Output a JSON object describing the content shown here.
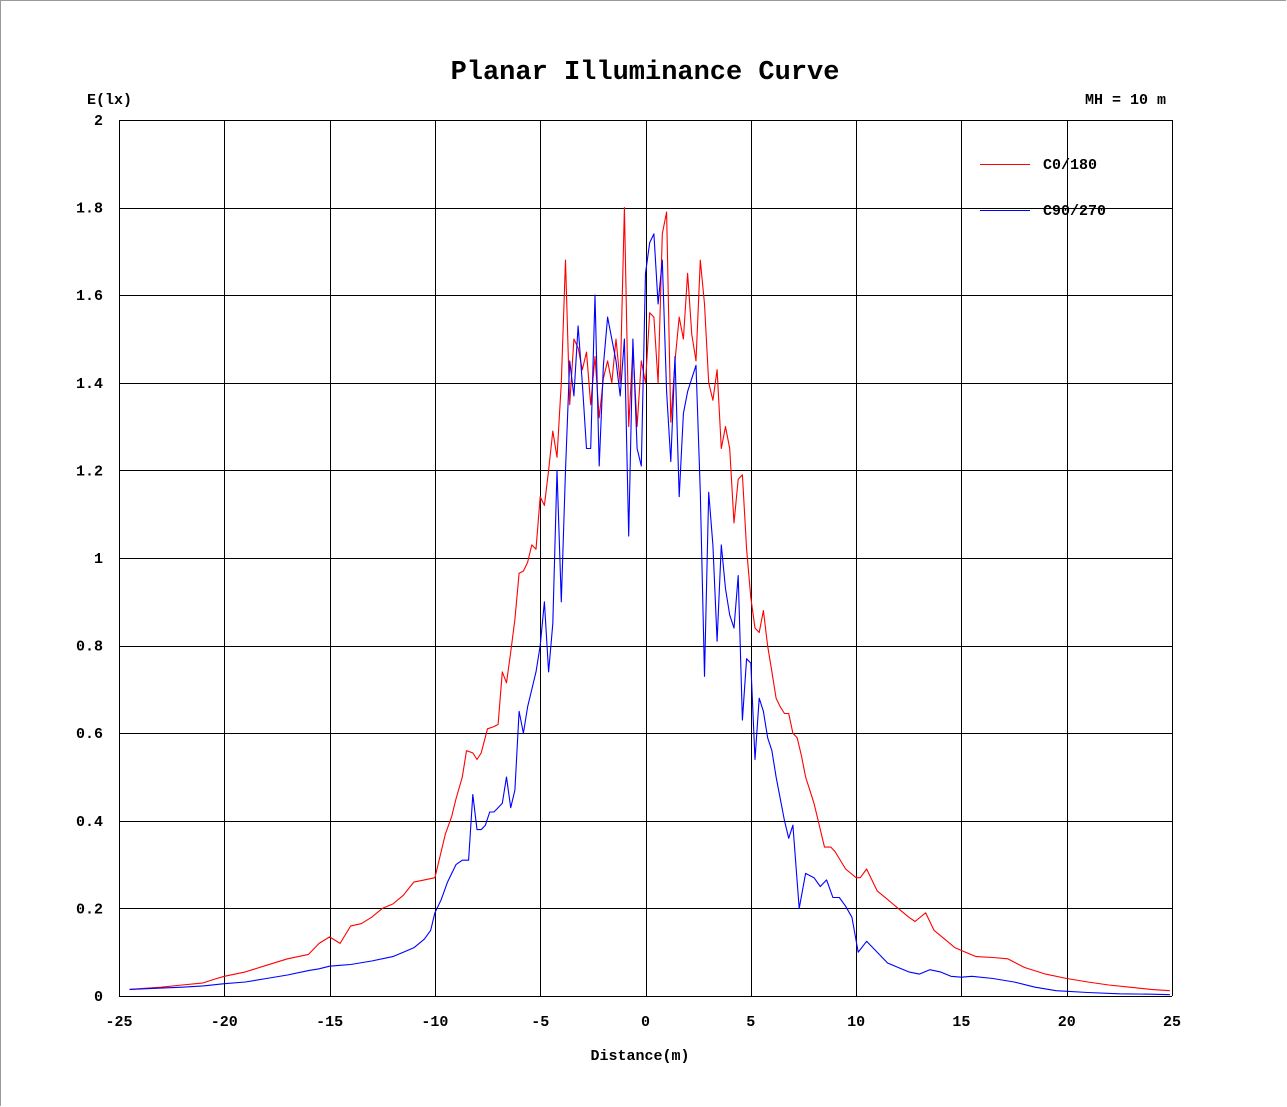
{
  "chart_data": {
    "type": "line",
    "title": "Planar Illuminance Curve",
    "ylabel": "E(lx)",
    "xlabel": "Distance(m)",
    "annotation": "MH = 10 m",
    "xlim": [
      -25,
      25
    ],
    "ylim": [
      0,
      2
    ],
    "xticks": [
      -25,
      -20,
      -15,
      -10,
      -5,
      0,
      5,
      10,
      15,
      20,
      25
    ],
    "yticks": [
      0,
      0.2,
      0.4,
      0.6,
      0.8,
      1,
      1.2,
      1.4,
      1.6,
      1.8,
      2
    ],
    "grid": true,
    "legend_position": "top-right",
    "colors": {
      "C0/180": "#ff0000",
      "C90/270": "#0000ff",
      "grid": "#000000"
    },
    "series": [
      {
        "name": "C0/180",
        "color": "#ff0000",
        "points": [
          [
            -24.5,
            0.015
          ],
          [
            -23,
            0.02
          ],
          [
            -22,
            0.025
          ],
          [
            -21,
            0.03
          ],
          [
            -20.5,
            0.038
          ],
          [
            -20,
            0.045
          ],
          [
            -19,
            0.055
          ],
          [
            -18,
            0.07
          ],
          [
            -17,
            0.085
          ],
          [
            -16,
            0.095
          ],
          [
            -15.5,
            0.12
          ],
          [
            -15,
            0.135
          ],
          [
            -14.5,
            0.12
          ],
          [
            -14,
            0.16
          ],
          [
            -13.5,
            0.165
          ],
          [
            -13,
            0.18
          ],
          [
            -12.5,
            0.2
          ],
          [
            -12,
            0.21
          ],
          [
            -11.5,
            0.23
          ],
          [
            -11,
            0.26
          ],
          [
            -10.5,
            0.265
          ],
          [
            -10,
            0.27
          ],
          [
            -9.8,
            0.31
          ],
          [
            -9.5,
            0.37
          ],
          [
            -9.2,
            0.41
          ],
          [
            -9,
            0.45
          ],
          [
            -8.7,
            0.5
          ],
          [
            -8.5,
            0.56
          ],
          [
            -8.2,
            0.555
          ],
          [
            -8,
            0.54
          ],
          [
            -7.8,
            0.555
          ],
          [
            -7.5,
            0.61
          ],
          [
            -7.2,
            0.615
          ],
          [
            -7,
            0.62
          ],
          [
            -6.8,
            0.74
          ],
          [
            -6.6,
            0.715
          ],
          [
            -6.4,
            0.785
          ],
          [
            -6.2,
            0.86
          ],
          [
            -6,
            0.965
          ],
          [
            -5.8,
            0.97
          ],
          [
            -5.6,
            0.99
          ],
          [
            -5.4,
            1.03
          ],
          [
            -5.2,
            1.02
          ],
          [
            -5,
            1.14
          ],
          [
            -4.8,
            1.12
          ],
          [
            -4.6,
            1.2
          ],
          [
            -4.4,
            1.29
          ],
          [
            -4.2,
            1.23
          ],
          [
            -4,
            1.4
          ],
          [
            -3.8,
            1.68
          ],
          [
            -3.6,
            1.35
          ],
          [
            -3.4,
            1.5
          ],
          [
            -3.2,
            1.48
          ],
          [
            -3,
            1.43
          ],
          [
            -2.8,
            1.47
          ],
          [
            -2.6,
            1.35
          ],
          [
            -2.4,
            1.46
          ],
          [
            -2.2,
            1.32
          ],
          [
            -2,
            1.41
          ],
          [
            -1.8,
            1.45
          ],
          [
            -1.6,
            1.4
          ],
          [
            -1.4,
            1.5
          ],
          [
            -1.2,
            1.4
          ],
          [
            -1,
            1.8
          ],
          [
            -0.8,
            1.3
          ],
          [
            -0.6,
            1.48
          ],
          [
            -0.4,
            1.3
          ],
          [
            -0.2,
            1.45
          ],
          [
            0,
            1.4
          ],
          [
            0.2,
            1.56
          ],
          [
            0.4,
            1.55
          ],
          [
            0.6,
            1.4
          ],
          [
            0.8,
            1.74
          ],
          [
            1,
            1.79
          ],
          [
            1.2,
            1.31
          ],
          [
            1.4,
            1.45
          ],
          [
            1.6,
            1.55
          ],
          [
            1.8,
            1.5
          ],
          [
            2,
            1.65
          ],
          [
            2.2,
            1.51
          ],
          [
            2.4,
            1.45
          ],
          [
            2.6,
            1.68
          ],
          [
            2.8,
            1.58
          ],
          [
            3,
            1.4
          ],
          [
            3.2,
            1.36
          ],
          [
            3.4,
            1.43
          ],
          [
            3.6,
            1.25
          ],
          [
            3.8,
            1.3
          ],
          [
            4,
            1.25
          ],
          [
            4.2,
            1.08
          ],
          [
            4.4,
            1.18
          ],
          [
            4.6,
            1.19
          ],
          [
            4.8,
            1.02
          ],
          [
            5,
            0.91
          ],
          [
            5.2,
            0.84
          ],
          [
            5.4,
            0.83
          ],
          [
            5.6,
            0.88
          ],
          [
            5.8,
            0.8
          ],
          [
            6,
            0.74
          ],
          [
            6.2,
            0.68
          ],
          [
            6.4,
            0.66
          ],
          [
            6.6,
            0.645
          ],
          [
            6.8,
            0.645
          ],
          [
            7,
            0.6
          ],
          [
            7.2,
            0.59
          ],
          [
            7.4,
            0.55
          ],
          [
            7.6,
            0.5
          ],
          [
            7.8,
            0.47
          ],
          [
            8,
            0.44
          ],
          [
            8.2,
            0.4
          ],
          [
            8.5,
            0.34
          ],
          [
            8.8,
            0.34
          ],
          [
            9,
            0.33
          ],
          [
            9.5,
            0.29
          ],
          [
            10,
            0.27
          ],
          [
            10.2,
            0.27
          ],
          [
            10.5,
            0.29
          ],
          [
            11,
            0.24
          ],
          [
            11.5,
            0.22
          ],
          [
            12,
            0.2
          ],
          [
            12.5,
            0.18
          ],
          [
            12.8,
            0.17
          ],
          [
            13.3,
            0.19
          ],
          [
            13.7,
            0.15
          ],
          [
            14.2,
            0.13
          ],
          [
            14.7,
            0.11
          ],
          [
            15.2,
            0.1
          ],
          [
            15.7,
            0.09
          ],
          [
            16.5,
            0.088
          ],
          [
            17.2,
            0.085
          ],
          [
            18,
            0.065
          ],
          [
            19,
            0.05
          ],
          [
            20,
            0.04
          ],
          [
            21,
            0.032
          ],
          [
            22,
            0.025
          ],
          [
            23,
            0.02
          ],
          [
            24,
            0.015
          ],
          [
            24.9,
            0.012
          ]
        ]
      },
      {
        "name": "C90/270",
        "color": "#0000ff",
        "points": [
          [
            -24.5,
            0.015
          ],
          [
            -23,
            0.018
          ],
          [
            -22,
            0.02
          ],
          [
            -21,
            0.023
          ],
          [
            -20,
            0.028
          ],
          [
            -19,
            0.032
          ],
          [
            -18,
            0.04
          ],
          [
            -17,
            0.048
          ],
          [
            -16,
            0.058
          ],
          [
            -15.5,
            0.062
          ],
          [
            -15,
            0.068
          ],
          [
            -14.5,
            0.07
          ],
          [
            -14,
            0.072
          ],
          [
            -13,
            0.08
          ],
          [
            -12,
            0.09
          ],
          [
            -11.5,
            0.1
          ],
          [
            -11,
            0.11
          ],
          [
            -10.5,
            0.13
          ],
          [
            -10.2,
            0.15
          ],
          [
            -10,
            0.19
          ],
          [
            -9.7,
            0.22
          ],
          [
            -9.4,
            0.26
          ],
          [
            -9,
            0.3
          ],
          [
            -8.7,
            0.31
          ],
          [
            -8.4,
            0.31
          ],
          [
            -8.2,
            0.46
          ],
          [
            -8,
            0.38
          ],
          [
            -7.8,
            0.38
          ],
          [
            -7.6,
            0.39
          ],
          [
            -7.4,
            0.42
          ],
          [
            -7.2,
            0.42
          ],
          [
            -7,
            0.43
          ],
          [
            -6.8,
            0.44
          ],
          [
            -6.6,
            0.5
          ],
          [
            -6.4,
            0.43
          ],
          [
            -6.2,
            0.47
          ],
          [
            -6,
            0.65
          ],
          [
            -5.8,
            0.6
          ],
          [
            -5.6,
            0.66
          ],
          [
            -5.4,
            0.7
          ],
          [
            -5.2,
            0.74
          ],
          [
            -5,
            0.8
          ],
          [
            -4.8,
            0.9
          ],
          [
            -4.6,
            0.74
          ],
          [
            -4.4,
            0.85
          ],
          [
            -4.2,
            1.2
          ],
          [
            -4,
            0.9
          ],
          [
            -3.8,
            1.2
          ],
          [
            -3.6,
            1.45
          ],
          [
            -3.4,
            1.37
          ],
          [
            -3.2,
            1.53
          ],
          [
            -3,
            1.4
          ],
          [
            -2.8,
            1.25
          ],
          [
            -2.6,
            1.25
          ],
          [
            -2.4,
            1.6
          ],
          [
            -2.2,
            1.21
          ],
          [
            -2,
            1.44
          ],
          [
            -1.8,
            1.55
          ],
          [
            -1.6,
            1.5
          ],
          [
            -1.4,
            1.45
          ],
          [
            -1.2,
            1.37
          ],
          [
            -1,
            1.5
          ],
          [
            -0.8,
            1.05
          ],
          [
            -0.6,
            1.5
          ],
          [
            -0.4,
            1.25
          ],
          [
            -0.2,
            1.21
          ],
          [
            0,
            1.65
          ],
          [
            0.2,
            1.72
          ],
          [
            0.4,
            1.74
          ],
          [
            0.6,
            1.58
          ],
          [
            0.8,
            1.68
          ],
          [
            1,
            1.38
          ],
          [
            1.2,
            1.22
          ],
          [
            1.4,
            1.46
          ],
          [
            1.6,
            1.14
          ],
          [
            1.8,
            1.33
          ],
          [
            2,
            1.38
          ],
          [
            2.2,
            1.41
          ],
          [
            2.4,
            1.44
          ],
          [
            2.6,
            1.15
          ],
          [
            2.8,
            0.73
          ],
          [
            3,
            1.15
          ],
          [
            3.2,
            1.03
          ],
          [
            3.4,
            0.81
          ],
          [
            3.6,
            1.03
          ],
          [
            3.8,
            0.93
          ],
          [
            4,
            0.87
          ],
          [
            4.2,
            0.84
          ],
          [
            4.4,
            0.96
          ],
          [
            4.6,
            0.63
          ],
          [
            4.8,
            0.77
          ],
          [
            5,
            0.76
          ],
          [
            5.2,
            0.54
          ],
          [
            5.4,
            0.68
          ],
          [
            5.6,
            0.65
          ],
          [
            5.8,
            0.59
          ],
          [
            6,
            0.56
          ],
          [
            6.2,
            0.5
          ],
          [
            6.4,
            0.45
          ],
          [
            6.6,
            0.4
          ],
          [
            6.8,
            0.36
          ],
          [
            7,
            0.39
          ],
          [
            7.3,
            0.2
          ],
          [
            7.6,
            0.28
          ],
          [
            8,
            0.27
          ],
          [
            8.3,
            0.25
          ],
          [
            8.6,
            0.265
          ],
          [
            8.9,
            0.225
          ],
          [
            9.2,
            0.225
          ],
          [
            9.5,
            0.205
          ],
          [
            9.8,
            0.18
          ],
          [
            10.1,
            0.1
          ],
          [
            10.5,
            0.125
          ],
          [
            11,
            0.1
          ],
          [
            11.5,
            0.075
          ],
          [
            12,
            0.065
          ],
          [
            12.5,
            0.055
          ],
          [
            13,
            0.05
          ],
          [
            13.5,
            0.06
          ],
          [
            14,
            0.055
          ],
          [
            14.5,
            0.045
          ],
          [
            15,
            0.043
          ],
          [
            15.5,
            0.045
          ],
          [
            16.5,
            0.04
          ],
          [
            17.5,
            0.032
          ],
          [
            18.5,
            0.02
          ],
          [
            19.5,
            0.012
          ],
          [
            21,
            0.008
          ],
          [
            22.5,
            0.005
          ],
          [
            24,
            0.004
          ],
          [
            24.9,
            0.003
          ]
        ]
      }
    ]
  }
}
